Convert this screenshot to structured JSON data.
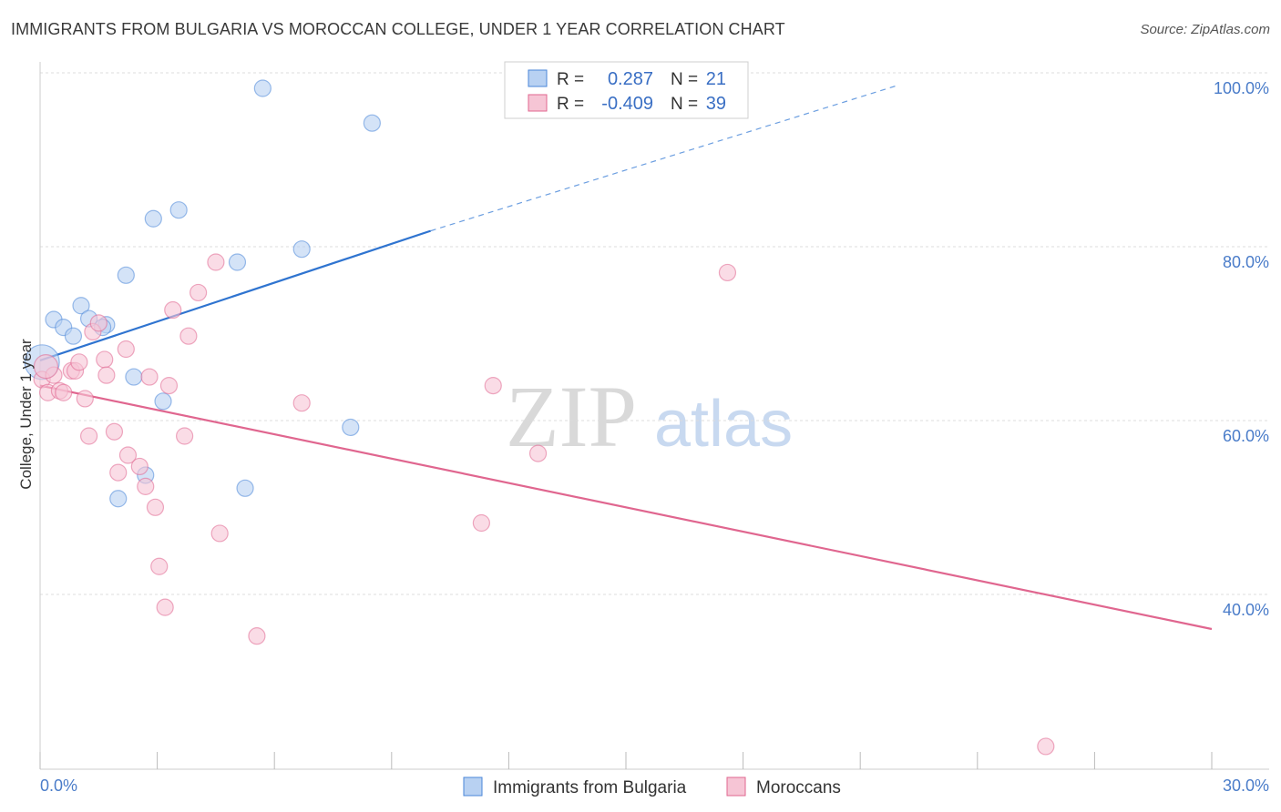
{
  "title": "IMMIGRANTS FROM BULGARIA VS MOROCCAN COLLEGE, UNDER 1 YEAR CORRELATION CHART",
  "source": "Source: ZipAtlas.com",
  "watermark": {
    "zip": "ZIP",
    "atlas": "atlas"
  },
  "colors": {
    "blue": "#4a86d8",
    "blue_fill": "#b8d1f2",
    "pink": "#e0668f",
    "pink_fill": "#f6c5d5",
    "axis_text": "#4a7cc9",
    "grid": "#dcdcdc"
  },
  "chart_data": {
    "type": "scatter",
    "title": "IMMIGRANTS FROM BULGARIA VS MOROCCAN COLLEGE, UNDER 1 YEAR CORRELATION CHART",
    "xlabel": "",
    "ylabel": "College, Under 1 year",
    "xlim": [
      0,
      30
    ],
    "ylim": [
      20,
      104
    ],
    "x_tick_labels": [
      "0.0%",
      "30.0%"
    ],
    "y_ticks": [
      40,
      60,
      80,
      100
    ],
    "y_tick_labels": [
      "40.0%",
      "60.0%",
      "80.0%",
      "100.0%"
    ],
    "legend_stats": [
      {
        "r_label": "R =",
        "r_value": "0.287",
        "n_label": "N =",
        "n_value": "21"
      },
      {
        "r_label": "R =",
        "r_value": "-0.409",
        "n_label": "N =",
        "n_value": "39"
      }
    ],
    "series": [
      {
        "name": "Immigrants from Bulgaria",
        "color": "#4a86d8",
        "points": [
          [
            0.05,
            68.5
          ],
          [
            0.35,
            73.4
          ],
          [
            0.6,
            72.5
          ],
          [
            0.85,
            71.5
          ],
          [
            1.05,
            75.0
          ],
          [
            1.25,
            73.5
          ],
          [
            1.7,
            72.8
          ],
          [
            2.2,
            78.5
          ],
          [
            2.4,
            66.8
          ],
          [
            2.0,
            52.8
          ],
          [
            2.7,
            55.5
          ],
          [
            2.9,
            85.0
          ],
          [
            3.15,
            64.0
          ],
          [
            3.55,
            86.0
          ],
          [
            5.05,
            80.0
          ],
          [
            5.25,
            54.0
          ],
          [
            5.7,
            100.0
          ],
          [
            6.7,
            81.5
          ],
          [
            7.95,
            61.0
          ],
          [
            8.5,
            96.0
          ],
          [
            1.6,
            72.5
          ]
        ],
        "trend": {
          "x0": 0,
          "y0": 68.7,
          "x1": 10.0,
          "y1": 83.6,
          "x_dash_end": 22.0,
          "y_dash_end": 100.4
        }
      },
      {
        "name": "Moroccans",
        "color": "#e0668f",
        "points": [
          [
            0.05,
            66.5
          ],
          [
            0.2,
            65.0
          ],
          [
            0.35,
            67.0
          ],
          [
            0.5,
            65.2
          ],
          [
            0.6,
            65.0
          ],
          [
            0.8,
            67.5
          ],
          [
            0.9,
            67.5
          ],
          [
            1.0,
            68.5
          ],
          [
            1.15,
            64.3
          ],
          [
            1.25,
            60.0
          ],
          [
            1.35,
            72.0
          ],
          [
            1.5,
            73.0
          ],
          [
            1.65,
            68.8
          ],
          [
            1.7,
            67.0
          ],
          [
            1.9,
            60.5
          ],
          [
            2.0,
            55.8
          ],
          [
            2.2,
            70.0
          ],
          [
            2.25,
            57.8
          ],
          [
            2.55,
            56.5
          ],
          [
            2.7,
            54.2
          ],
          [
            2.8,
            66.8
          ],
          [
            2.95,
            51.8
          ],
          [
            3.05,
            45.0
          ],
          [
            3.2,
            40.3
          ],
          [
            3.3,
            65.8
          ],
          [
            3.4,
            74.5
          ],
          [
            3.7,
            60.0
          ],
          [
            3.8,
            71.5
          ],
          [
            4.05,
            76.5
          ],
          [
            4.5,
            80.0
          ],
          [
            4.6,
            48.8
          ],
          [
            5.55,
            37.0
          ],
          [
            6.7,
            63.8
          ],
          [
            11.3,
            50.0
          ],
          [
            11.6,
            65.8
          ],
          [
            12.75,
            58.0
          ],
          [
            17.6,
            78.8
          ],
          [
            25.75,
            24.3
          ],
          [
            0.15,
            68.0
          ]
        ],
        "trend": {
          "x0": 0,
          "y0": 65.8,
          "x1": 30.0,
          "y1": 37.8
        }
      }
    ]
  },
  "legend": {
    "items": [
      {
        "label": "Immigrants from Bulgaria"
      },
      {
        "label": "Moroccans"
      }
    ]
  }
}
